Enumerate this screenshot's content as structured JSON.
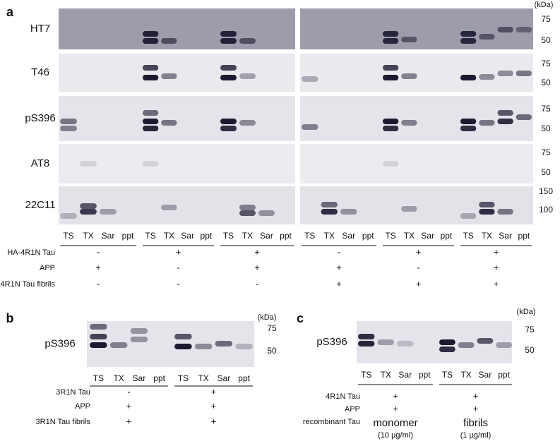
{
  "panel_a": {
    "label": "a",
    "kda": "(kDa)",
    "rows": [
      {
        "antibody": "HT7",
        "markers": [
          75,
          50
        ]
      },
      {
        "antibody": "T46",
        "markers": [
          75,
          50
        ]
      },
      {
        "antibody": "pS396",
        "markers": [
          75,
          50
        ]
      },
      {
        "antibody": "AT8",
        "markers": [
          75,
          50
        ]
      },
      {
        "antibody": "22C11",
        "markers": [
          150,
          100
        ]
      }
    ],
    "lane_groups": [
      [
        "TS",
        "TX",
        "Sar",
        "ppt"
      ],
      [
        "TS",
        "TX",
        "Sar",
        "ppt"
      ],
      [
        "TS",
        "TX",
        "Sar",
        "ppt"
      ],
      [
        "TS",
        "TX",
        "Sar",
        "ppt"
      ],
      [
        "TS",
        "TX",
        "Sar",
        "ppt"
      ],
      [
        "TS",
        "TX",
        "Sar",
        "ppt"
      ]
    ],
    "conditions": [
      {
        "name": "HA-4R1N Tau",
        "values": [
          "-",
          "+",
          "+",
          "-",
          "+",
          "+"
        ]
      },
      {
        "name": "APP",
        "values": [
          "+",
          "-",
          "+",
          "+",
          "-",
          "+"
        ]
      },
      {
        "name": "4R1N Tau fibrils",
        "values": [
          "-",
          "-",
          "-",
          "+",
          "+",
          "+"
        ]
      }
    ]
  },
  "panel_b": {
    "label": "b",
    "kda": "(kDa)",
    "rows": [
      {
        "antibody": "pS396",
        "markers": [
          75,
          50
        ]
      }
    ],
    "lane_groups": [
      [
        "TS",
        "TX",
        "Sar",
        "ppt"
      ],
      [
        "TS",
        "TX",
        "Sar",
        "ppt"
      ]
    ],
    "conditions": [
      {
        "name": "3R1N Tau",
        "values": [
          "-",
          "+"
        ]
      },
      {
        "name": "APP",
        "values": [
          "+",
          "+"
        ]
      },
      {
        "name": "3R1N Tau fibrils",
        "values": [
          "+",
          "+"
        ]
      }
    ]
  },
  "panel_c": {
    "label": "c",
    "kda": "(kDa)",
    "rows": [
      {
        "antibody": "pS396",
        "markers": [
          75,
          50
        ]
      }
    ],
    "lane_groups": [
      [
        "TS",
        "TX",
        "Sar",
        "ppt"
      ],
      [
        "TS",
        "TX",
        "Sar",
        "ppt"
      ]
    ],
    "conditions": [
      {
        "name": "4R1N Tau",
        "values": [
          "+",
          "+"
        ]
      },
      {
        "name": "APP",
        "values": [
          "+",
          "+"
        ]
      },
      {
        "name": "recombinant Tau",
        "values": [
          "monomer",
          "fibrils"
        ],
        "notes": [
          "(10 µg/ml)",
          "(1 µg/ml)"
        ]
      }
    ]
  }
}
